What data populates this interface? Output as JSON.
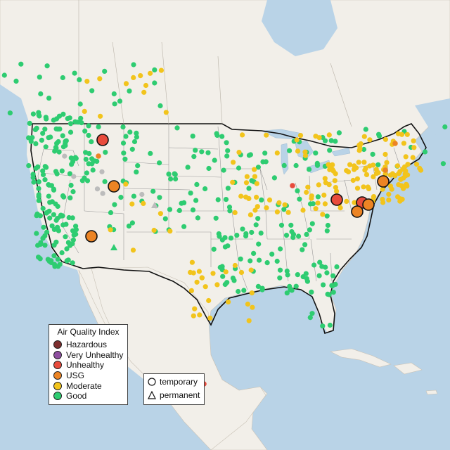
{
  "legend": {
    "title": "Air Quality Index",
    "categories": [
      {
        "label": "Hazardous",
        "color": "#7e2f2f"
      },
      {
        "label": "Very Unhealthy",
        "color": "#8e4fa0"
      },
      {
        "label": "Unhealthy",
        "color": "#e84b3c"
      },
      {
        "label": "USG",
        "color": "#ec8424"
      },
      {
        "label": "Moderate",
        "color": "#f2c41c"
      },
      {
        "label": "Good",
        "color": "#2ecc71"
      }
    ],
    "shape_temporary": "temporary",
    "shape_permanent": "permanent"
  },
  "colors": {
    "land": "#f2efe9",
    "water": "#b9d3e7",
    "good": "#2ecc71",
    "moderate": "#f2c41c",
    "usg": "#ec8424",
    "unhealthy": "#e84b3c",
    "offline": "#bcbcbc"
  }
}
